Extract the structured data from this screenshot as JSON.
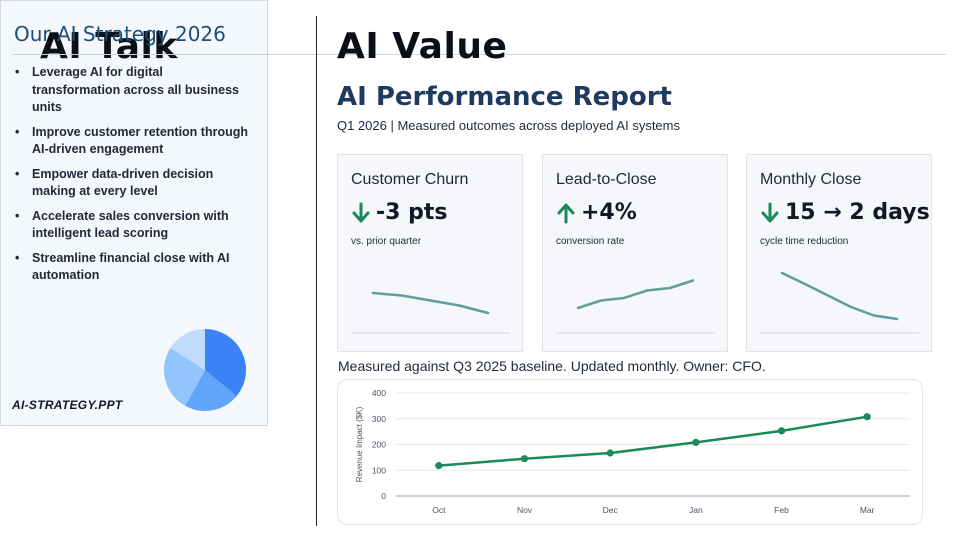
{
  "left": {
    "title": "AI Talk",
    "panel": {
      "title": "Our AI Strategy 2026",
      "bullets": [
        "Leverage AI for digital transformation across all business units",
        "Improve customer retention through AI-driven engagement",
        "Empower data-driven decision making at every level",
        "Accelerate sales conversion with intelligent lead scoring",
        "Streamline financial close with AI automation"
      ],
      "bullet_glyph": "•",
      "footer": "AI-STRATEGY.PPT",
      "pie_colors": [
        "#3b82f6",
        "#60a5fa",
        "#93c5fd",
        "#bfdbfe"
      ]
    }
  },
  "right": {
    "title": "AI Value",
    "report_title": "AI Performance Report",
    "subtitle": "Q1 2026  |  Measured outcomes across deployed AI systems",
    "kpis": [
      {
        "name": "Customer Churn",
        "value": "-3 pts",
        "direction": "down",
        "sub": "vs. prior quarter",
        "trend": [
          0.6,
          0.55,
          0.45,
          0.35,
          0.2
        ]
      },
      {
        "name": "Lead-to-Close",
        "value": "+4%",
        "direction": "up",
        "sub": "conversion rate",
        "trend": [
          0.3,
          0.45,
          0.5,
          0.65,
          0.7,
          0.85
        ]
      },
      {
        "name": "Monthly Close",
        "value": "15 → 2 days",
        "direction": "down",
        "sub": "cycle time reduction",
        "trend": [
          1.0,
          0.78,
          0.55,
          0.32,
          0.15,
          0.08
        ]
      }
    ],
    "note": "Measured against Q3 2025 baseline. Updated monthly. Owner: CFO."
  },
  "colors": {
    "accent_green": "#1a8a5a",
    "spark": "#5f9e9a",
    "grid": "#e5e7eb"
  },
  "chart_data": {
    "type": "line",
    "categories": [
      "Oct",
      "Nov",
      "Dec",
      "Jan",
      "Feb",
      "Mar"
    ],
    "series": [
      {
        "values": [
          118,
          145,
          167,
          208,
          253,
          308
        ]
      }
    ],
    "ylabel": "Revenue Impact ($K)",
    "yticks": [
      0,
      100,
      200,
      300,
      400
    ],
    "ylim": [
      0,
      400
    ],
    "grid": true,
    "color": "#1a8a5a"
  }
}
